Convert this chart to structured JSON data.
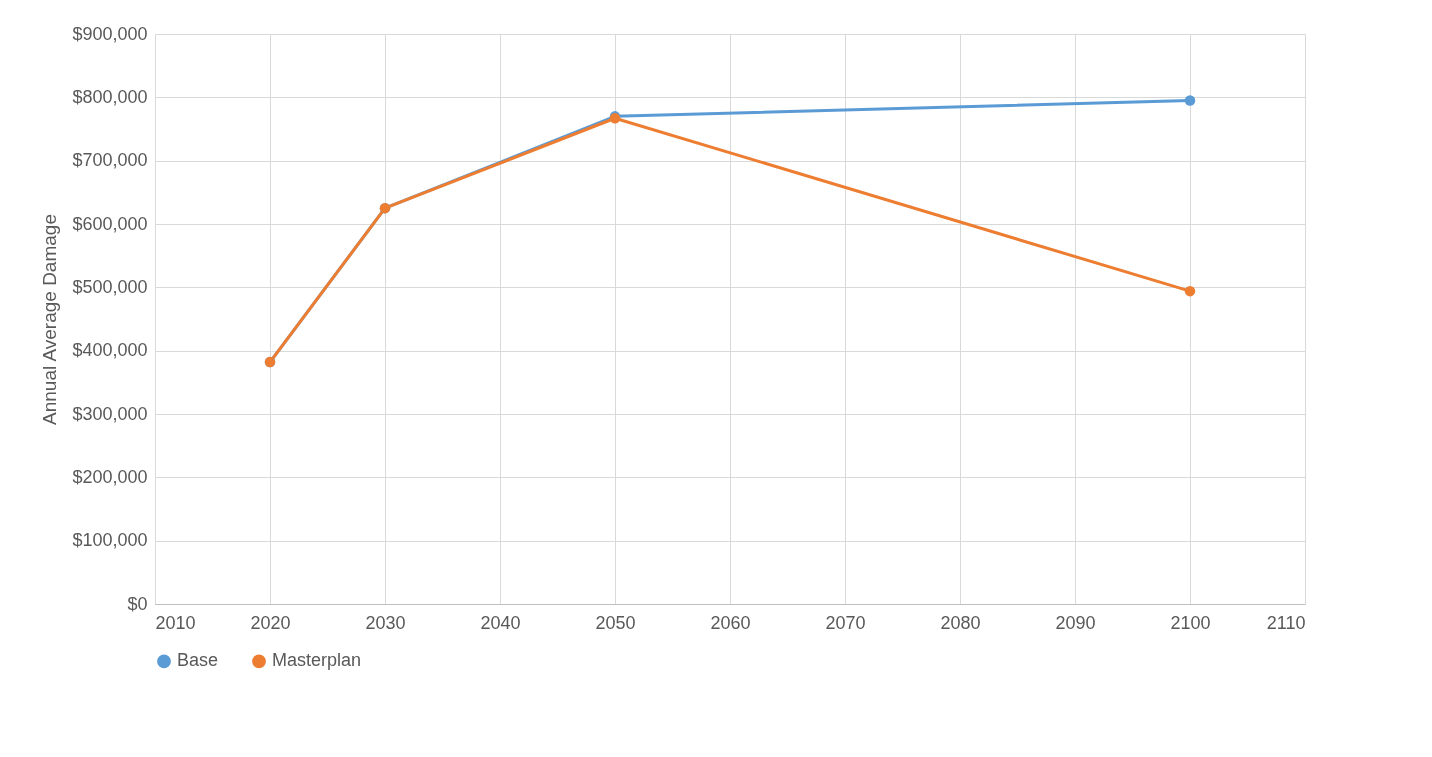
{
  "chart_data": {
    "type": "line",
    "ylabel": "Annual Average Damage",
    "x": [
      2020,
      2030,
      2050,
      2100
    ],
    "series": [
      {
        "name": "Base",
        "color": "#5b9bd5",
        "values": [
          382000,
          625000,
          770000,
          795000
        ]
      },
      {
        "name": "Masterplan",
        "color": "#ed7d31",
        "values": [
          382000,
          625000,
          767000,
          494000
        ]
      }
    ],
    "xlim": [
      2010,
      2110
    ],
    "xticks": [
      2010,
      2020,
      2030,
      2040,
      2050,
      2060,
      2070,
      2080,
      2090,
      2100,
      2110
    ],
    "ylim": [
      0,
      900000
    ],
    "yticks": [
      {
        "value": 0,
        "label": "$0"
      },
      {
        "value": 100000,
        "label": "$100,000"
      },
      {
        "value": 200000,
        "label": "$200,000"
      },
      {
        "value": 300000,
        "label": "$300,000"
      },
      {
        "value": 400000,
        "label": "$400,000"
      },
      {
        "value": 500000,
        "label": "$500,000"
      },
      {
        "value": 600000,
        "label": "$600,000"
      },
      {
        "value": 700000,
        "label": "$700,000"
      },
      {
        "value": 800000,
        "label": "$800,000"
      },
      {
        "value": 900000,
        "label": "$900,000"
      }
    ],
    "grid": true,
    "legend": "bottom",
    "marker": "circle",
    "line_style": "solid"
  }
}
